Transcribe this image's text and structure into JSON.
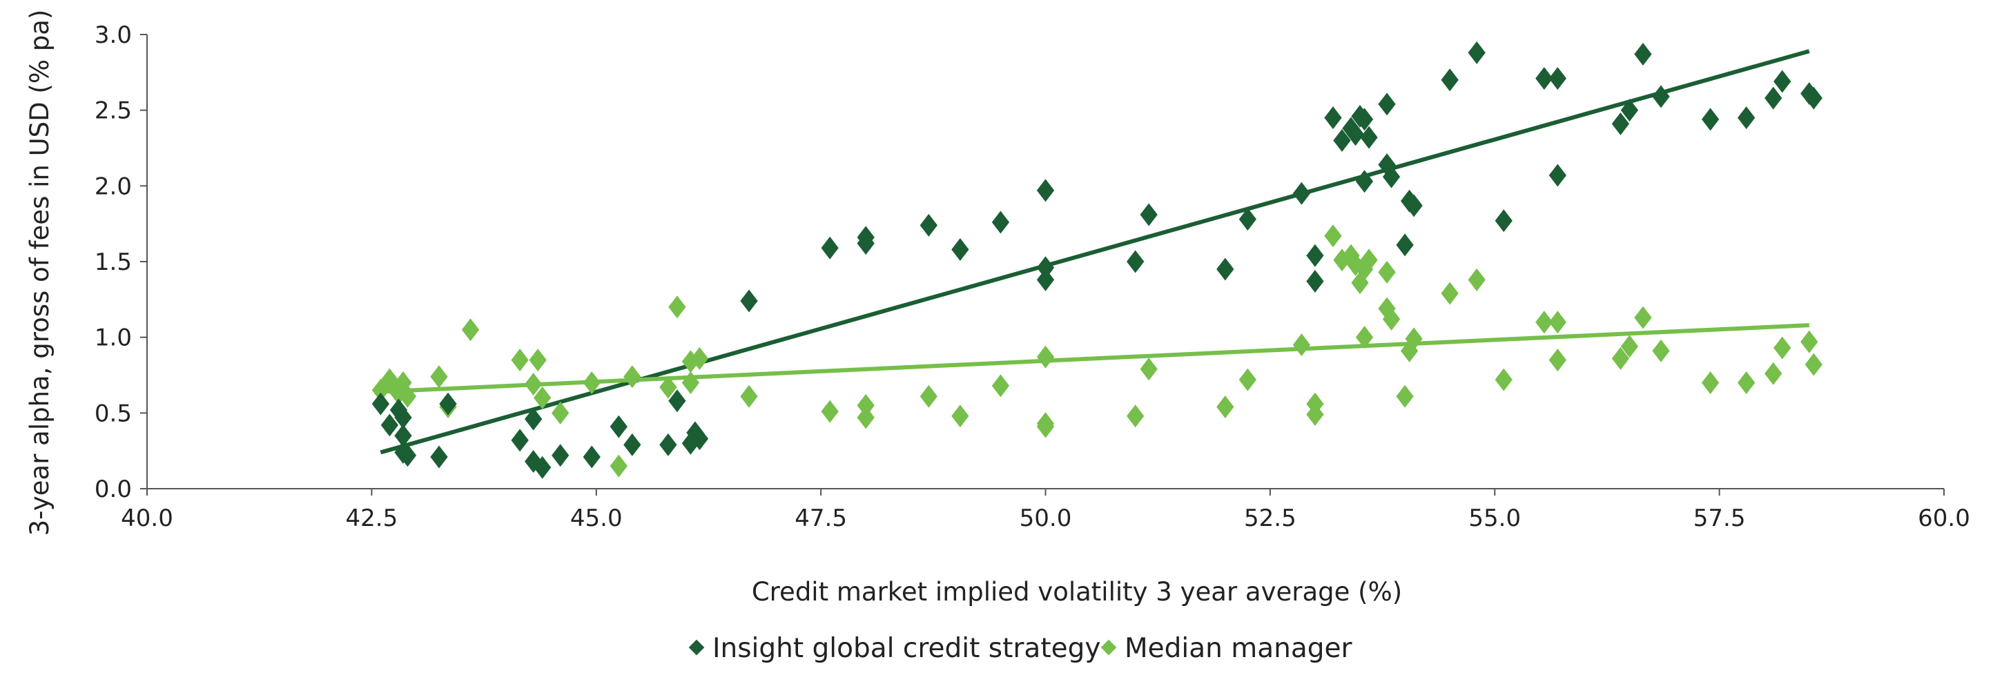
{
  "chart_data": {
    "type": "scatter",
    "title": "",
    "xlabel": "Credit market implied volatility 3 year average (%)",
    "ylabel": "3-year alpha, gross of fees in USD (% pa)",
    "xlim": [
      40.0,
      60.0
    ],
    "ylim": [
      0.0,
      3.0
    ],
    "xticks": [
      "40.0",
      "42.5",
      "45.0",
      "47.5",
      "50.0",
      "52.5",
      "55.0",
      "57.5",
      "60.0"
    ],
    "yticks": [
      "0.0",
      "0.5",
      "1.0",
      "1.5",
      "2.0",
      "2.5",
      "3.0"
    ],
    "grid": false,
    "legend_position": "bottom",
    "series": [
      {
        "name": "Insight global credit strategy",
        "color": "#1b5e34",
        "marker": "diamond",
        "trendline": {
          "x": [
            42.6,
            58.5
          ],
          "y": [
            0.24,
            2.89
          ]
        },
        "points": [
          [
            42.6,
            0.56
          ],
          [
            42.7,
            0.42
          ],
          [
            42.8,
            0.52
          ],
          [
            42.85,
            0.47
          ],
          [
            42.85,
            0.35
          ],
          [
            42.85,
            0.24
          ],
          [
            42.9,
            0.22
          ],
          [
            43.25,
            0.21
          ],
          [
            43.35,
            0.56
          ],
          [
            44.15,
            0.32
          ],
          [
            44.3,
            0.46
          ],
          [
            44.3,
            0.18
          ],
          [
            44.4,
            0.14
          ],
          [
            44.6,
            0.22
          ],
          [
            44.95,
            0.21
          ],
          [
            45.25,
            0.41
          ],
          [
            45.4,
            0.29
          ],
          [
            45.8,
            0.29
          ],
          [
            45.9,
            0.58
          ],
          [
            46.05,
            0.3
          ],
          [
            46.1,
            0.37
          ],
          [
            46.15,
            0.33
          ],
          [
            46.7,
            1.24
          ],
          [
            47.6,
            1.59
          ],
          [
            48.0,
            1.62
          ],
          [
            48.0,
            1.66
          ],
          [
            48.7,
            1.74
          ],
          [
            49.05,
            1.58
          ],
          [
            49.5,
            1.76
          ],
          [
            50.0,
            1.97
          ],
          [
            50.0,
            1.46
          ],
          [
            50.0,
            1.38
          ],
          [
            51.0,
            1.5
          ],
          [
            51.15,
            1.81
          ],
          [
            52.0,
            1.45
          ],
          [
            52.25,
            1.78
          ],
          [
            52.85,
            1.95
          ],
          [
            53.0,
            1.54
          ],
          [
            53.0,
            1.37
          ],
          [
            53.2,
            2.45
          ],
          [
            53.3,
            2.3
          ],
          [
            53.4,
            2.38
          ],
          [
            53.45,
            2.34
          ],
          [
            53.5,
            2.46
          ],
          [
            53.55,
            2.44
          ],
          [
            53.6,
            2.32
          ],
          [
            53.55,
            2.03
          ],
          [
            53.8,
            2.54
          ],
          [
            53.8,
            2.14
          ],
          [
            53.85,
            2.06
          ],
          [
            54.0,
            1.61
          ],
          [
            54.05,
            1.9
          ],
          [
            54.1,
            1.87
          ],
          [
            54.5,
            2.7
          ],
          [
            54.8,
            2.88
          ],
          [
            55.1,
            1.77
          ],
          [
            55.55,
            2.71
          ],
          [
            55.7,
            2.71
          ],
          [
            55.7,
            2.07
          ],
          [
            56.4,
            2.41
          ],
          [
            56.5,
            2.5
          ],
          [
            56.65,
            2.87
          ],
          [
            56.85,
            2.59
          ],
          [
            57.4,
            2.44
          ],
          [
            57.8,
            2.45
          ],
          [
            58.1,
            2.58
          ],
          [
            58.2,
            2.69
          ],
          [
            58.5,
            2.61
          ],
          [
            58.55,
            2.58
          ]
        ]
      },
      {
        "name": "Median manager",
        "color": "#76bf4a",
        "marker": "diamond",
        "trendline": {
          "x": [
            42.6,
            58.5
          ],
          "y": [
            0.64,
            1.08
          ]
        },
        "points": [
          [
            42.6,
            0.65
          ],
          [
            42.7,
            0.72
          ],
          [
            42.75,
            0.68
          ],
          [
            42.8,
            0.63
          ],
          [
            42.85,
            0.7
          ],
          [
            42.9,
            0.61
          ],
          [
            43.25,
            0.74
          ],
          [
            43.35,
            0.54
          ],
          [
            43.6,
            1.05
          ],
          [
            44.15,
            0.85
          ],
          [
            44.3,
            0.69
          ],
          [
            44.35,
            0.85
          ],
          [
            44.4,
            0.6
          ],
          [
            44.6,
            0.5
          ],
          [
            44.95,
            0.7
          ],
          [
            45.25,
            0.15
          ],
          [
            45.4,
            0.74
          ],
          [
            45.8,
            0.67
          ],
          [
            45.9,
            1.2
          ],
          [
            46.05,
            0.7
          ],
          [
            46.05,
            0.84
          ],
          [
            46.15,
            0.86
          ],
          [
            46.7,
            0.61
          ],
          [
            47.6,
            0.51
          ],
          [
            48.0,
            0.47
          ],
          [
            48.0,
            0.55
          ],
          [
            48.7,
            0.61
          ],
          [
            49.05,
            0.48
          ],
          [
            49.5,
            0.68
          ],
          [
            50.0,
            0.87
          ],
          [
            50.0,
            0.43
          ],
          [
            50.0,
            0.41
          ],
          [
            51.0,
            0.48
          ],
          [
            51.15,
            0.79
          ],
          [
            52.0,
            0.54
          ],
          [
            52.25,
            0.72
          ],
          [
            52.85,
            0.95
          ],
          [
            53.0,
            0.56
          ],
          [
            53.0,
            0.49
          ],
          [
            53.2,
            1.67
          ],
          [
            53.3,
            1.51
          ],
          [
            53.4,
            1.54
          ],
          [
            53.45,
            1.48
          ],
          [
            53.5,
            1.36
          ],
          [
            53.55,
            1.45
          ],
          [
            53.6,
            1.51
          ],
          [
            53.55,
            1.0
          ],
          [
            53.8,
            1.43
          ],
          [
            53.8,
            1.19
          ],
          [
            53.85,
            1.12
          ],
          [
            54.0,
            0.61
          ],
          [
            54.05,
            0.91
          ],
          [
            54.1,
            0.99
          ],
          [
            54.5,
            1.29
          ],
          [
            54.8,
            1.38
          ],
          [
            55.1,
            0.72
          ],
          [
            55.55,
            1.1
          ],
          [
            55.7,
            1.1
          ],
          [
            55.7,
            0.85
          ],
          [
            56.4,
            0.86
          ],
          [
            56.5,
            0.94
          ],
          [
            56.65,
            1.13
          ],
          [
            56.85,
            0.91
          ],
          [
            57.4,
            0.7
          ],
          [
            57.8,
            0.7
          ],
          [
            58.1,
            0.76
          ],
          [
            58.2,
            0.93
          ],
          [
            58.5,
            0.97
          ],
          [
            58.55,
            0.82
          ]
        ]
      }
    ]
  }
}
